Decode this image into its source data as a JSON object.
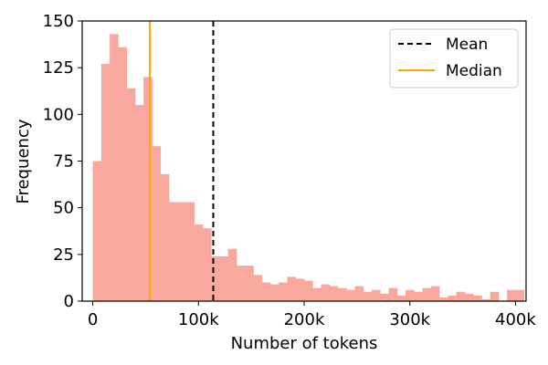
{
  "chart_data": {
    "type": "bar",
    "title": "",
    "xlabel": "Number of tokens",
    "ylabel": "Frequency",
    "xlim": [
      -10000,
      410000
    ],
    "ylim": [
      0,
      150
    ],
    "bin_start": 0,
    "bin_width": 8000,
    "frequencies": [
      75,
      127,
      143,
      136,
      114,
      105,
      120,
      83,
      68,
      53,
      53,
      53,
      41,
      39,
      24,
      24,
      28,
      19,
      19,
      14,
      10,
      9,
      10,
      13,
      12,
      11,
      7,
      9,
      8,
      7,
      6,
      8,
      5,
      6,
      4,
      7,
      3,
      6,
      5,
      7,
      8,
      2,
      3,
      5,
      4,
      3,
      1,
      5,
      0,
      6,
      6
    ],
    "x_ticks": [
      0,
      100000,
      200000,
      300000,
      400000
    ],
    "x_tick_labels": [
      "0",
      "100k",
      "200k",
      "300k",
      "400k"
    ],
    "y_ticks": [
      0,
      25,
      50,
      75,
      100,
      125,
      150
    ],
    "y_tick_labels": [
      "0",
      "25",
      "50",
      "75",
      "100",
      "125",
      "150"
    ],
    "mean": 114000,
    "median": 54000,
    "bar_color": "#f9a89e",
    "mean_color": "#000000",
    "median_color": "#ffa500",
    "legend": {
      "position": "top-right",
      "entries": [
        {
          "label": "Mean",
          "style": "dashed",
          "color": "#000000"
        },
        {
          "label": "Median",
          "style": "solid",
          "color": "#ffa500"
        }
      ]
    }
  }
}
